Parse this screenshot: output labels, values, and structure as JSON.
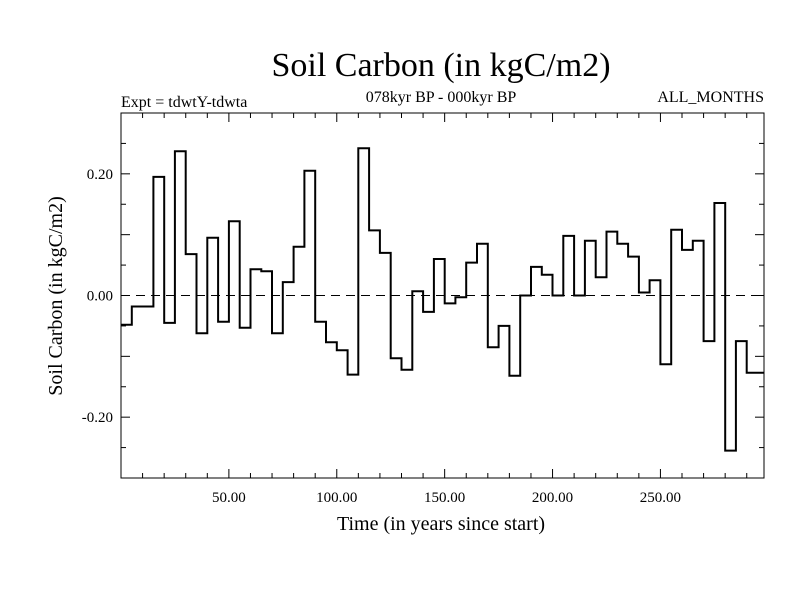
{
  "chart_data": {
    "type": "line",
    "style": "step",
    "title": "Soil Carbon (in kgC/m2)",
    "subtitle": "078kyr BP - 000kyr BP",
    "left_note": "Expt = tdwtY-tdwta",
    "right_note": "ALL_MONTHS",
    "xlabel": "Time (in years since start)",
    "ylabel": "Soil Carbon (in kgC/m2)",
    "xlim": [
      0,
      298
    ],
    "ylim": [
      -0.3,
      0.3
    ],
    "xticks": [
      50,
      100,
      150,
      200,
      250
    ],
    "xtick_labels": [
      "50.00",
      "100.00",
      "150.00",
      "200.00",
      "250.00"
    ],
    "yticks": [
      -0.2,
      0.0,
      0.2
    ],
    "ytick_labels": [
      "-0.20",
      "0.00",
      "0.20"
    ],
    "reference_line": {
      "y": 0.0,
      "style": "dashed"
    },
    "series": [
      {
        "name": "Soil Carbon",
        "x": [
          0,
          5,
          10,
          15,
          20,
          25,
          30,
          35,
          40,
          45,
          50,
          55,
          60,
          65,
          70,
          75,
          80,
          85,
          90,
          95,
          100,
          105,
          110,
          115,
          120,
          125,
          130,
          135,
          140,
          145,
          150,
          155,
          160,
          165,
          170,
          175,
          180,
          185,
          190,
          195,
          200,
          205,
          210,
          215,
          220,
          225,
          230,
          235,
          240,
          245,
          250,
          255,
          260,
          265,
          270,
          275,
          280,
          285,
          290,
          295
        ],
        "values": [
          -0.048,
          -0.018,
          -0.018,
          0.195,
          -0.045,
          0.237,
          0.068,
          -0.062,
          0.095,
          -0.043,
          0.122,
          -0.053,
          0.043,
          0.04,
          -0.062,
          0.022,
          0.08,
          0.205,
          -0.043,
          -0.077,
          -0.09,
          -0.13,
          0.242,
          0.107,
          0.07,
          -0.103,
          -0.122,
          0.007,
          -0.027,
          0.06,
          -0.013,
          -0.003,
          0.054,
          0.085,
          -0.085,
          -0.05,
          -0.132,
          0.0,
          0.047,
          0.034,
          0.0,
          0.098,
          0.0,
          0.09,
          0.03,
          0.105,
          0.085,
          0.064,
          0.005,
          0.025,
          -0.113,
          0.108,
          0.075,
          0.09,
          -0.075,
          0.152,
          -0.255,
          -0.075,
          -0.127,
          -0.127
        ]
      }
    ]
  }
}
